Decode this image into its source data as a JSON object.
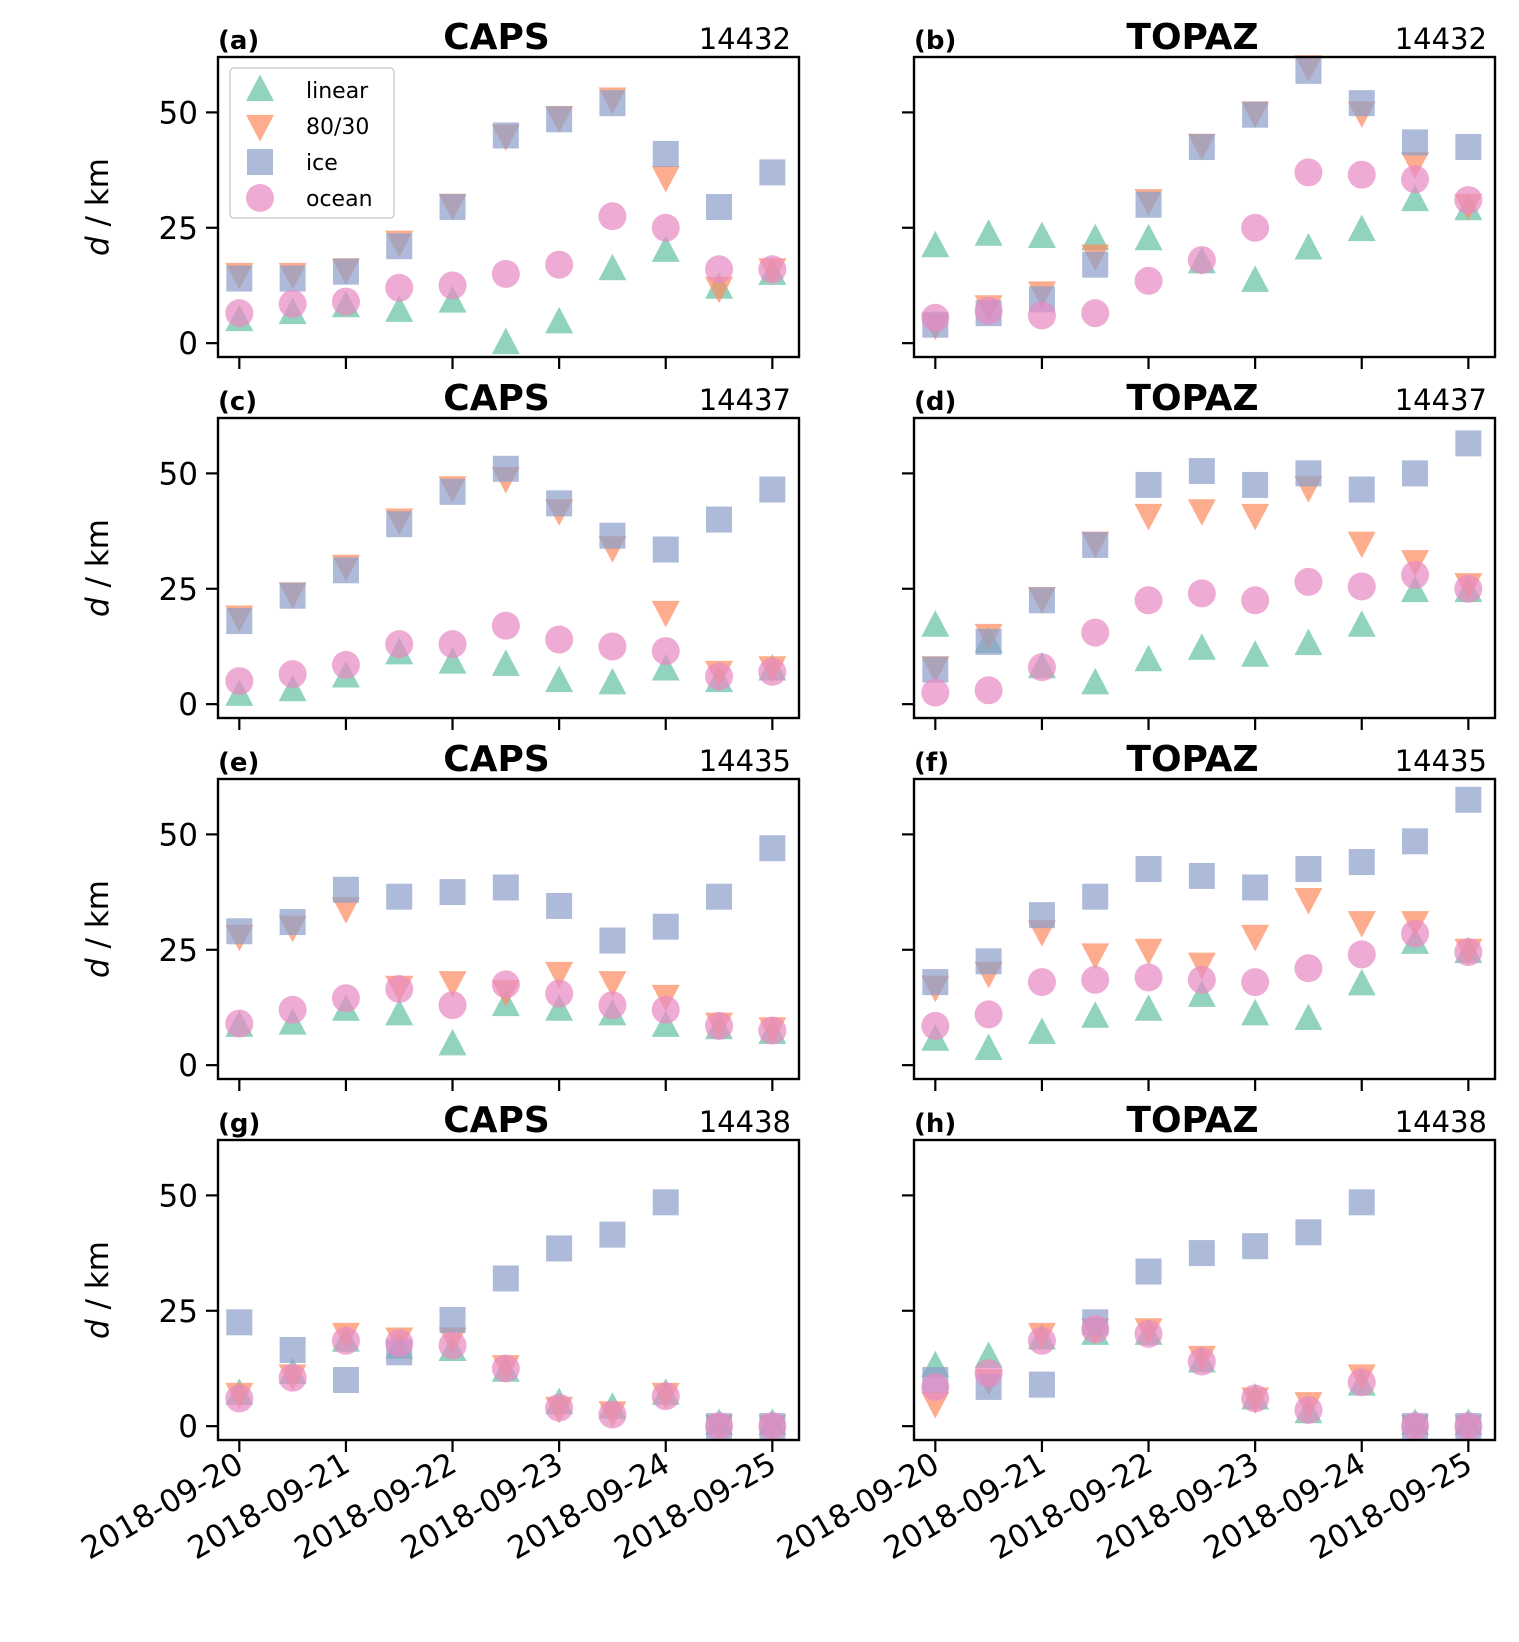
{
  "chart_data": {
    "type": "scatter",
    "ylabel_italic": "d",
    "ylabel_rest": " / km",
    "yticks": [
      0,
      25,
      50
    ],
    "ylim": [
      -3,
      62
    ],
    "xlim": [
      -0.2,
      5.25
    ],
    "date_labels": [
      "2018-09-20",
      "2018-09-21",
      "2018-09-22",
      "2018-09-23",
      "2018-09-24",
      "2018-09-25"
    ],
    "x": [
      0,
      0.5,
      1,
      1.5,
      2,
      2.5,
      3,
      3.5,
      4,
      4.5,
      5
    ],
    "legend": {
      "placement": "upper-left of panel (a)",
      "entries": [
        {
          "key": "linear",
          "label": "linear",
          "marker": "triangle-up",
          "color": "#66c2a5"
        },
        {
          "key": "t8030",
          "label": "80/30",
          "marker": "triangle-down",
          "color": "#fc8d62"
        },
        {
          "key": "ice",
          "label": "ice",
          "marker": "square",
          "color": "#8da0cb"
        },
        {
          "key": "ocean",
          "label": "ocean",
          "marker": "circle",
          "color": "#e78ac3"
        }
      ]
    },
    "panels": [
      {
        "letter": "(a)",
        "title": "CAPS",
        "id": "14432",
        "series": {
          "linear": [
            5,
            6.5,
            8,
            7,
            9,
            0,
            4.5,
            16,
            20,
            12,
            15
          ],
          "t8030": [
            15,
            15,
            16,
            22,
            30,
            45,
            49,
            53,
            36,
            12,
            16
          ],
          "ice": [
            14,
            14,
            15.5,
            21,
            29.5,
            45,
            48.5,
            52,
            41,
            29.5,
            37
          ],
          "ocean": [
            6.5,
            8.5,
            9,
            12,
            12.5,
            15,
            17,
            27.5,
            25,
            16,
            16
          ]
        }
      },
      {
        "letter": "(b)",
        "title": "TOPAZ",
        "id": "14432",
        "series": {
          "linear": [
            21,
            23.5,
            23,
            22.5,
            22.5,
            17.5,
            13.5,
            20.5,
            24.5,
            31,
            29
          ],
          "t8030": [
            4,
            8,
            11,
            19,
            31,
            43,
            50,
            60,
            50,
            39,
            30
          ],
          "ice": [
            4,
            6.5,
            9.5,
            17,
            30,
            42.5,
            49.5,
            59,
            52,
            43.5,
            42.5
          ],
          "ocean": [
            5.5,
            7,
            6,
            6.5,
            13.5,
            18,
            25,
            37,
            36.5,
            35.5,
            31
          ]
        }
      },
      {
        "letter": "(c)",
        "title": "CAPS",
        "id": "14437",
        "series": {
          "linear": [
            2,
            3,
            6,
            11,
            9,
            8.5,
            5,
            4.5,
            7.5,
            5,
            7.5
          ],
          "t8030": [
            19,
            24,
            30,
            40,
            47,
            49,
            42,
            34,
            20,
            7,
            8
          ],
          "ice": [
            18,
            23.5,
            29,
            39,
            46,
            51,
            43.5,
            36.5,
            33.5,
            40,
            46.5
          ],
          "ocean": [
            5,
            6.5,
            8.5,
            13,
            13,
            17,
            14,
            12.5,
            11.5,
            6,
            7
          ]
        }
      },
      {
        "letter": "(d)",
        "title": "TOPAZ",
        "id": "14437",
        "series": {
          "linear": [
            17,
            13.5,
            8,
            4.5,
            9.5,
            12,
            10.5,
            13,
            17,
            24.5,
            24.5
          ],
          "t8030": [
            8,
            15,
            23,
            35,
            41,
            42,
            41,
            47,
            35,
            31,
            26
          ],
          "ice": [
            7.5,
            13.5,
            22.5,
            34.5,
            47.5,
            50.5,
            47.5,
            50,
            46.5,
            50,
            56.5
          ],
          "ocean": [
            2.5,
            3,
            8,
            15.5,
            22.5,
            24,
            22.5,
            26.5,
            25.5,
            28,
            25
          ]
        }
      },
      {
        "letter": "(e)",
        "title": "CAPS",
        "id": "14435",
        "series": {
          "linear": [
            8.5,
            9,
            12,
            11,
            4.5,
            13,
            12,
            11,
            8.5,
            8,
            7
          ],
          "t8030": [
            28,
            30,
            34,
            17,
            18,
            16,
            20,
            18,
            15,
            9,
            8
          ],
          "ice": [
            29,
            31,
            38,
            36.5,
            37.5,
            38.5,
            34.5,
            27,
            30,
            36.5,
            47
          ],
          "ocean": [
            9,
            12,
            14.5,
            16.5,
            13,
            17.5,
            15.5,
            13,
            12,
            8.5,
            7.5
          ]
        }
      },
      {
        "letter": "(f)",
        "title": "TOPAZ",
        "id": "14435",
        "series": {
          "linear": [
            5.5,
            3.5,
            7,
            10.5,
            12,
            15,
            11,
            10,
            17.5,
            26.5,
            24.5
          ],
          "t8030": [
            17,
            20,
            29,
            24,
            25,
            22,
            28,
            36,
            31,
            31,
            25
          ],
          "ice": [
            18,
            22.5,
            32.5,
            36.5,
            42.5,
            41,
            38.5,
            42.5,
            44,
            48.5,
            57.5
          ],
          "ocean": [
            8.5,
            11,
            18,
            18.5,
            19,
            18.5,
            18,
            21,
            24,
            28.5,
            24.5
          ]
        }
      },
      {
        "letter": "(g)",
        "title": "CAPS",
        "id": "14438",
        "series": {
          "linear": [
            7,
            11.5,
            18.5,
            17,
            16.5,
            12,
            5,
            4,
            7,
            0.5,
            0.5
          ],
          "t8030": [
            7,
            11,
            20,
            19,
            19,
            13,
            4,
            3,
            7,
            0,
            0
          ],
          "ice": [
            22.5,
            16.5,
            10,
            16,
            23,
            32,
            38.5,
            41.5,
            48.5,
            0,
            0
          ],
          "ocean": [
            6,
            10.5,
            18.5,
            18,
            17.5,
            12.5,
            4,
            2.5,
            6.5,
            0,
            0
          ]
        }
      },
      {
        "letter": "(h)",
        "title": "TOPAZ",
        "id": "14438",
        "series": {
          "linear": [
            13,
            15,
            19,
            20,
            20,
            14,
            6,
            3,
            9,
            0.5,
            0.5
          ],
          "t8030": [
            5,
            10,
            20,
            21,
            21,
            15,
            6,
            5,
            11,
            0,
            0
          ],
          "ice": [
            10,
            8.5,
            9,
            22.5,
            33.5,
            37.5,
            39,
            42,
            48.5,
            0,
            0
          ],
          "ocean": [
            8.5,
            11.5,
            18.5,
            21,
            20,
            14,
            6,
            3.5,
            9.5,
            0,
            0
          ]
        }
      }
    ]
  }
}
